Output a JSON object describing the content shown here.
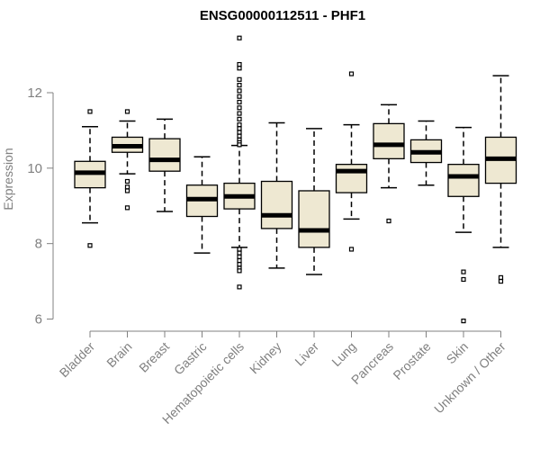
{
  "chart_data": {
    "type": "boxplot",
    "title": "ENSG00000112511 - PHF1",
    "xlabel": "",
    "ylabel": "Expression",
    "ylim": [
      6,
      13.5
    ],
    "yticks": [
      6,
      8,
      10,
      12
    ],
    "grid": false,
    "categories": [
      "Bladder",
      "Brain",
      "Breast",
      "Gastric",
      "Hematopoietic cells",
      "Kidney",
      "Liver",
      "Lung",
      "Pancreas",
      "Prostate",
      "Skin",
      "Unknown / Other"
    ],
    "boxes": [
      {
        "name": "Bladder",
        "whisker_low": 8.55,
        "q1": 9.48,
        "median": 9.88,
        "q3": 10.18,
        "whisker_high": 11.1,
        "outliers": [
          11.5,
          7.95
        ]
      },
      {
        "name": "Brain",
        "whisker_low": 9.85,
        "q1": 10.42,
        "median": 10.58,
        "q3": 10.82,
        "whisker_high": 11.25,
        "outliers": [
          11.5,
          9.65,
          9.5,
          9.4,
          8.95
        ]
      },
      {
        "name": "Breast",
        "whisker_low": 8.85,
        "q1": 9.92,
        "median": 10.22,
        "q3": 10.78,
        "whisker_high": 11.3,
        "outliers": []
      },
      {
        "name": "Gastric",
        "whisker_low": 7.75,
        "q1": 8.72,
        "median": 9.18,
        "q3": 9.55,
        "whisker_high": 10.3,
        "outliers": []
      },
      {
        "name": "Hematopoietic cells",
        "whisker_low": 7.9,
        "q1": 8.92,
        "median": 9.25,
        "q3": 9.6,
        "whisker_high": 10.6,
        "outliers": [
          13.45,
          12.75,
          12.65,
          12.35,
          12.2,
          12.05,
          11.9,
          11.75,
          11.6,
          11.45,
          11.3,
          11.15,
          11.05,
          10.95,
          10.85,
          10.75,
          10.68,
          10.62,
          7.85,
          7.75,
          7.65,
          7.55,
          7.45,
          7.35,
          7.28,
          6.85
        ]
      },
      {
        "name": "Kidney",
        "whisker_low": 7.35,
        "q1": 8.4,
        "median": 8.75,
        "q3": 9.65,
        "whisker_high": 11.2,
        "outliers": []
      },
      {
        "name": "Liver",
        "whisker_low": 7.18,
        "q1": 7.9,
        "median": 8.35,
        "q3": 9.4,
        "whisker_high": 11.05,
        "outliers": []
      },
      {
        "name": "Lung",
        "whisker_low": 8.65,
        "q1": 9.35,
        "median": 9.92,
        "q3": 10.1,
        "whisker_high": 11.15,
        "outliers": [
          12.5,
          7.85
        ]
      },
      {
        "name": "Pancreas",
        "whisker_low": 9.48,
        "q1": 10.25,
        "median": 10.62,
        "q3": 11.18,
        "whisker_high": 11.68,
        "outliers": [
          8.6
        ]
      },
      {
        "name": "Prostate",
        "whisker_low": 9.55,
        "q1": 10.15,
        "median": 10.42,
        "q3": 10.75,
        "whisker_high": 11.25,
        "outliers": []
      },
      {
        "name": "Skin",
        "whisker_low": 8.3,
        "q1": 9.25,
        "median": 9.78,
        "q3": 10.1,
        "whisker_high": 11.08,
        "outliers": [
          7.25,
          7.05,
          5.95
        ]
      },
      {
        "name": "Unknown / Other",
        "whisker_low": 7.9,
        "q1": 9.6,
        "median": 10.25,
        "q3": 10.82,
        "whisker_high": 12.45,
        "outliers": [
          7.1,
          7.0
        ]
      }
    ],
    "colors": {
      "box_fill": "#EEE8D2",
      "box_stroke": "#000000",
      "axis": "#808080",
      "label": "#808080"
    }
  }
}
